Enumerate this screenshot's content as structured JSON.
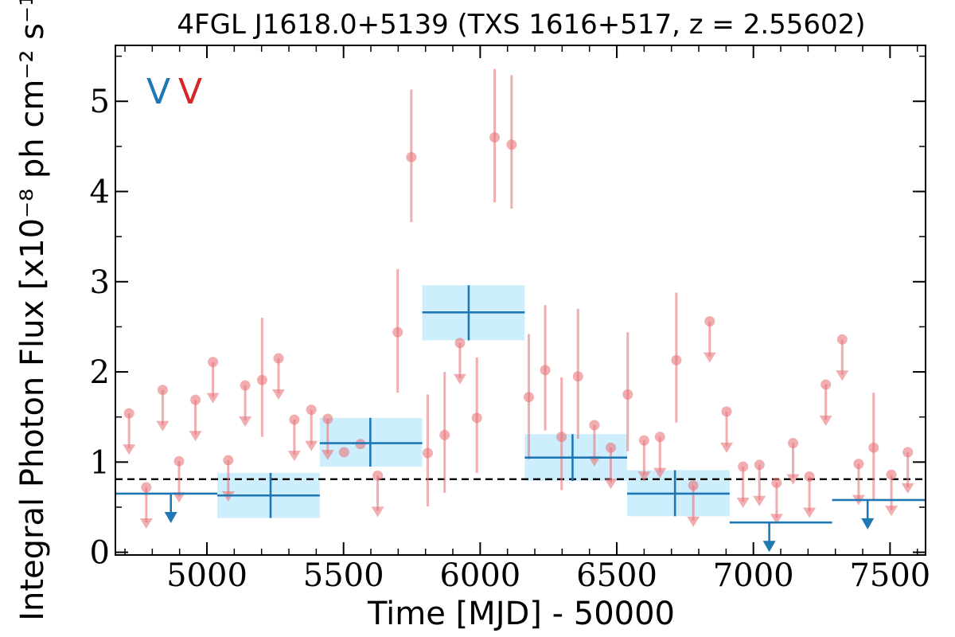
{
  "chart_data": {
    "type": "scatter",
    "title": "4FGL J1618.0+5139 (TXS 1616+517, z = 2.55602)",
    "xlabel": "Time [MJD] - 50000",
    "ylabel": "Integral Photon Flux [x10⁻⁸ ph cm⁻² s⁻¹]",
    "xlim": [
      4665,
      7630
    ],
    "ylim": [
      -0.03,
      5.62
    ],
    "xticks": [
      5000,
      5500,
      6000,
      6500,
      7000,
      7500
    ],
    "yticks": [
      0,
      1,
      2,
      3,
      4,
      5
    ],
    "xtick_labels": [
      "5000",
      "5500",
      "6000",
      "6500",
      "7000",
      "7500"
    ],
    "ytick_labels": [
      "0",
      "1",
      "2",
      "3",
      "4",
      "5"
    ],
    "legend_letters": [
      {
        "text": "V",
        "color": "#1f77b4"
      },
      {
        "text": "V",
        "color": "#d62728"
      }
    ],
    "reference_line": {
      "y": 0.81,
      "style": "dashed",
      "color": "#000000"
    },
    "colors": {
      "short_bins": "#e8767a",
      "long_bins": "#1f77b4",
      "long_bin_box": "#cdeefc"
    },
    "short_bins": {
      "detections": [
        {
          "x": 5202,
          "y": 1.91,
          "ylo": 1.28,
          "yhi": 2.6
        },
        {
          "x": 5502,
          "y": 1.11,
          "ylo": 1.11,
          "yhi": 1.11
        },
        {
          "x": 5562,
          "y": 1.2,
          "ylo": 1.2,
          "yhi": 1.2
        },
        {
          "x": 5698,
          "y": 2.44,
          "ylo": 1.77,
          "yhi": 3.14
        },
        {
          "x": 5748,
          "y": 4.38,
          "ylo": 3.66,
          "yhi": 5.13
        },
        {
          "x": 5808,
          "y": 1.1,
          "ylo": 0.51,
          "yhi": 1.75
        },
        {
          "x": 5870,
          "y": 1.3,
          "ylo": 0.66,
          "yhi": 2.0
        },
        {
          "x": 5988,
          "y": 1.49,
          "ylo": 0.88,
          "yhi": 2.16
        },
        {
          "x": 6053,
          "y": 4.6,
          "ylo": 3.88,
          "yhi": 5.36
        },
        {
          "x": 6115,
          "y": 4.52,
          "ylo": 3.81,
          "yhi": 5.29
        },
        {
          "x": 6178,
          "y": 1.72,
          "ylo": 1.03,
          "yhi": 2.42
        },
        {
          "x": 6238,
          "y": 2.02,
          "ylo": 1.35,
          "yhi": 2.74
        },
        {
          "x": 6298,
          "y": 1.28,
          "ylo": 0.69,
          "yhi": 1.94
        },
        {
          "x": 6358,
          "y": 1.95,
          "ylo": 1.26,
          "yhi": 2.7
        },
        {
          "x": 6540,
          "y": 1.75,
          "ylo": 1.12,
          "yhi": 2.44
        },
        {
          "x": 6718,
          "y": 2.13,
          "ylo": 1.44,
          "yhi": 2.88
        },
        {
          "x": 7440,
          "y": 1.16,
          "ylo": 0.58,
          "yhi": 1.77
        }
      ],
      "upper_limits": [
        {
          "x": 4715,
          "y": 1.54
        },
        {
          "x": 4778,
          "y": 0.72
        },
        {
          "x": 4838,
          "y": 1.8
        },
        {
          "x": 4898,
          "y": 1.01
        },
        {
          "x": 4958,
          "y": 1.69
        },
        {
          "x": 5022,
          "y": 2.11
        },
        {
          "x": 5078,
          "y": 1.02
        },
        {
          "x": 5140,
          "y": 1.85
        },
        {
          "x": 5262,
          "y": 2.15
        },
        {
          "x": 5320,
          "y": 1.47
        },
        {
          "x": 5382,
          "y": 1.58
        },
        {
          "x": 5442,
          "y": 1.48
        },
        {
          "x": 5625,
          "y": 0.85
        },
        {
          "x": 5926,
          "y": 2.32
        },
        {
          "x": 6418,
          "y": 1.41
        },
        {
          "x": 6478,
          "y": 1.16
        },
        {
          "x": 6600,
          "y": 1.24
        },
        {
          "x": 6658,
          "y": 1.28
        },
        {
          "x": 6780,
          "y": 0.74
        },
        {
          "x": 6840,
          "y": 2.56
        },
        {
          "x": 6902,
          "y": 1.56
        },
        {
          "x": 6962,
          "y": 0.95
        },
        {
          "x": 7022,
          "y": 0.97
        },
        {
          "x": 7085,
          "y": 0.77
        },
        {
          "x": 7145,
          "y": 1.21
        },
        {
          "x": 7205,
          "y": 0.84
        },
        {
          "x": 7265,
          "y": 1.86
        },
        {
          "x": 7325,
          "y": 2.36
        },
        {
          "x": 7385,
          "y": 0.98
        },
        {
          "x": 7505,
          "y": 0.86
        },
        {
          "x": 7565,
          "y": 1.11
        }
      ]
    },
    "long_bins": {
      "detections": [
        {
          "x0": 5038,
          "x1": 5413,
          "x": 5233,
          "y": 0.63,
          "ylo": 0.38,
          "yhi": 0.88
        },
        {
          "x0": 5413,
          "x1": 5788,
          "x": 5598,
          "y": 1.21,
          "ylo": 0.95,
          "yhi": 1.49
        },
        {
          "x0": 5788,
          "x1": 6163,
          "x": 5958,
          "y": 2.66,
          "ylo": 2.35,
          "yhi": 2.96
        },
        {
          "x0": 6163,
          "x1": 6538,
          "x": 6338,
          "y": 1.05,
          "ylo": 0.79,
          "yhi": 1.31
        },
        {
          "x0": 6538,
          "x1": 6913,
          "x": 6713,
          "y": 0.65,
          "ylo": 0.4,
          "yhi": 0.91
        }
      ],
      "upper_limits": [
        {
          "x0": 4663,
          "x1": 5038,
          "x": 4868,
          "y": 0.65
        },
        {
          "x0": 6913,
          "x1": 7288,
          "x": 7058,
          "y": 0.33
        },
        {
          "x0": 7288,
          "x1": 7663,
          "x": 7418,
          "y": 0.58
        }
      ]
    }
  }
}
